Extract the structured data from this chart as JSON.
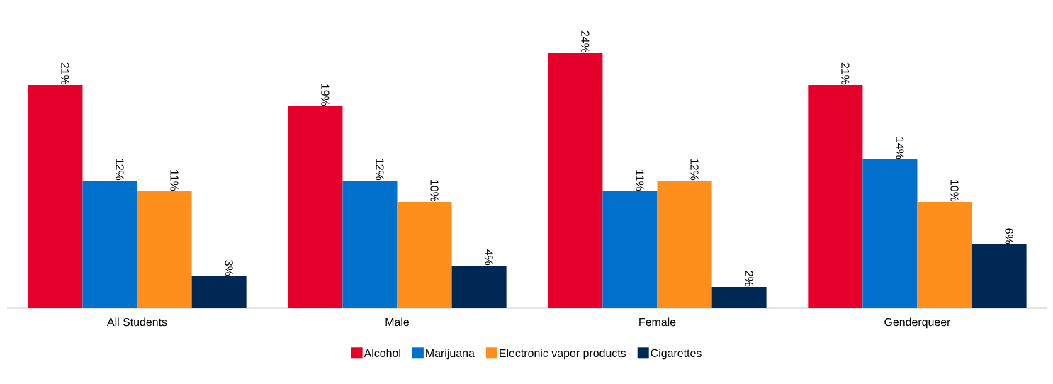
{
  "chart_data": {
    "type": "bar",
    "categories": [
      "All Students",
      "Male",
      "Female",
      "Genderqueer"
    ],
    "series": [
      {
        "name": "Alcohol",
        "color": "#e4002b",
        "values": [
          21,
          19,
          24,
          21
        ],
        "value_labels": [
          "21%",
          "19%",
          "24%",
          "21%"
        ]
      },
      {
        "name": "Marijuana",
        "color": "#0070cd",
        "values": [
          12,
          12,
          11,
          14
        ],
        "value_labels": [
          "12%",
          "12%",
          "11%",
          "14%"
        ]
      },
      {
        "name": "Electronic vapor products",
        "color": "#fe8f1d",
        "values": [
          11,
          10,
          12,
          10
        ],
        "value_labels": [
          "11%",
          "10%",
          "12%",
          "10%"
        ]
      },
      {
        "name": "Cigarettes",
        "color": "#002855",
        "values": [
          3,
          4,
          2,
          6
        ],
        "value_labels": [
          "3%",
          "4%",
          "2%",
          "6%"
        ]
      }
    ],
    "legend": "bottom"
  }
}
